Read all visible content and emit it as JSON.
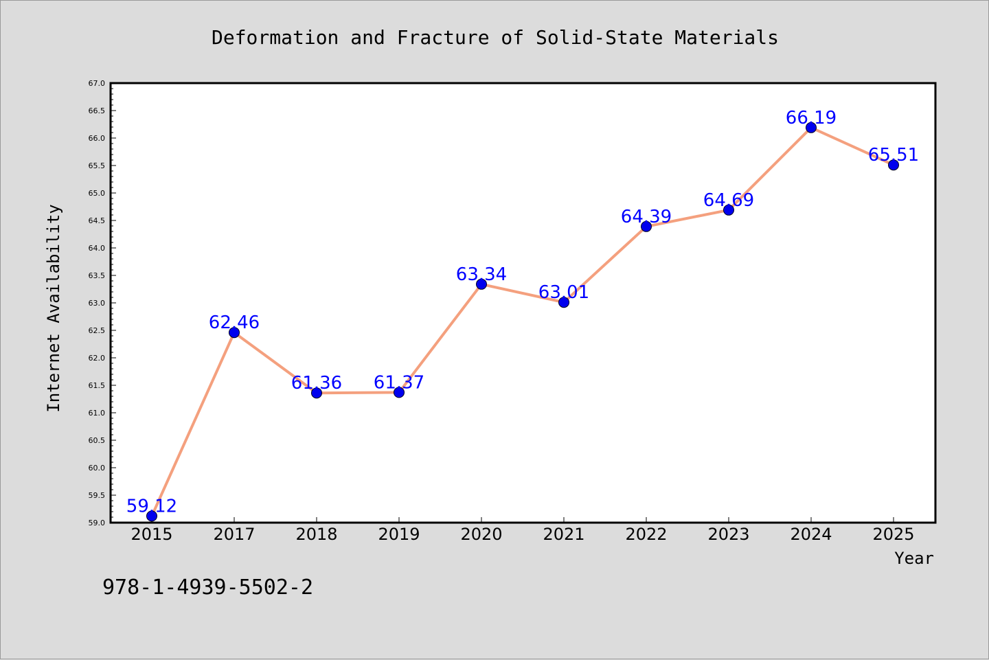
{
  "chart_data": {
    "type": "line",
    "title": "Deformation and Fracture of Solid-State Materials",
    "xlabel": "Year",
    "ylabel": "Internet Availability",
    "categories": [
      "2015",
      "2017",
      "2018",
      "2019",
      "2020",
      "2021",
      "2022",
      "2023",
      "2024",
      "2025"
    ],
    "values": [
      59.12,
      62.46,
      61.36,
      61.37,
      63.34,
      63.01,
      64.39,
      64.69,
      66.19,
      65.51
    ],
    "data_labels": [
      "59.12",
      "62.46",
      "61.36",
      "61.37",
      "63.34",
      "63.01",
      "64.39",
      "64.69",
      "66.19",
      "65.51"
    ],
    "yticks": [
      "59.0",
      "59.5",
      "60.0",
      "60.5",
      "61.0",
      "61.5",
      "62.0",
      "62.5",
      "63.0",
      "63.5",
      "64.0",
      "64.5",
      "65.0",
      "65.5",
      "66.0",
      "66.5",
      "67.0"
    ],
    "ylim": [
      59.0,
      67.0
    ],
    "grid": false,
    "legend": "none",
    "line_color": "#f4a07e",
    "marker_color": "#0000ee",
    "label_color": "#0000ff",
    "background_color": "#dcdcdc",
    "plot_background": "#ffffff"
  },
  "footer": {
    "isbn": "978-1-4939-5502-2"
  }
}
